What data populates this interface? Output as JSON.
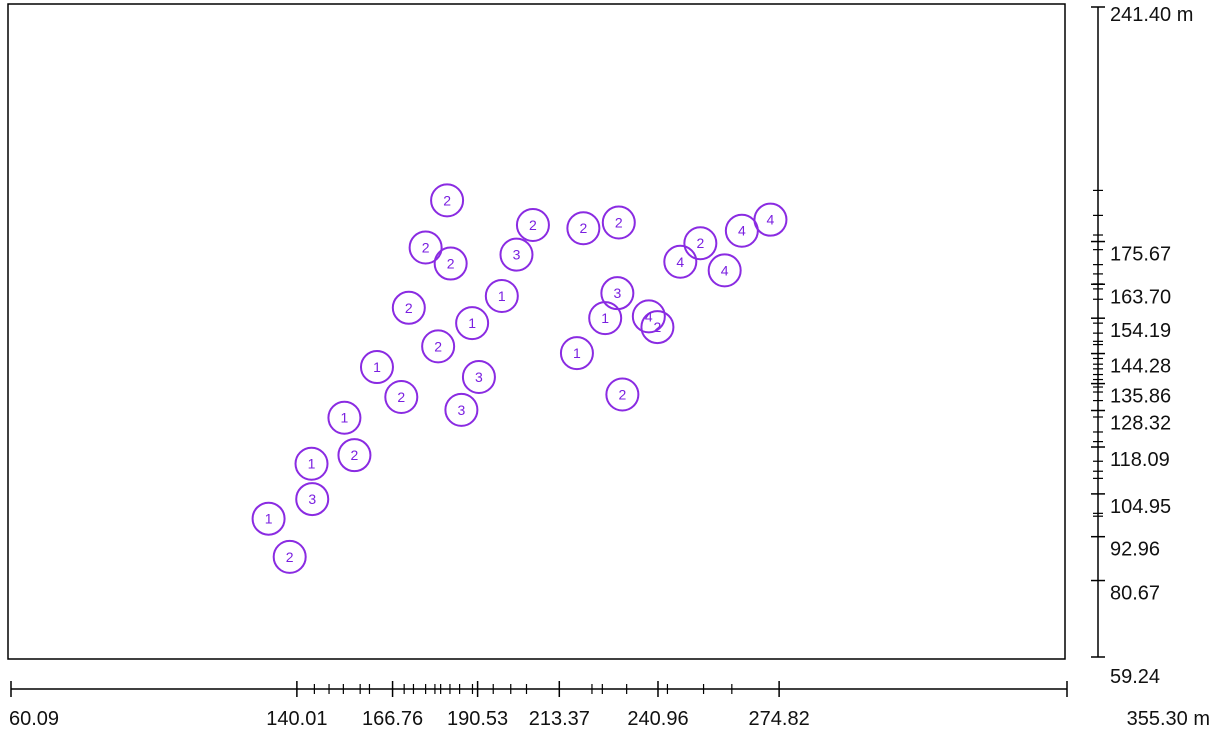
{
  "chart_data": {
    "type": "scatter",
    "title": "",
    "unit": "m",
    "x_axis": {
      "range": [
        60.09,
        355.3
      ],
      "labels": [
        {
          "value": 60.09,
          "text": "60.09"
        },
        {
          "value": 140.01,
          "text": "140.01"
        },
        {
          "value": 166.76,
          "text": "166.76"
        },
        {
          "value": 190.53,
          "text": "190.53"
        },
        {
          "value": 213.37,
          "text": "213.37"
        },
        {
          "value": 240.96,
          "text": "240.96"
        },
        {
          "value": 274.82,
          "text": "274.82"
        },
        {
          "value": 355.3,
          "text": "355.30 m"
        }
      ],
      "minor_ticks": [
        144.9,
        149.0,
        153.0,
        157.7,
        160.3,
        170.0,
        172.6,
        176.0,
        178.6,
        180.2,
        182.8,
        185.5,
        189.1,
        194.9,
        199.8,
        204.2,
        222.5,
        225.4,
        232.2,
        243.6,
        253.7,
        261.6
      ]
    },
    "y_axis": {
      "range": [
        59.24,
        241.4
      ],
      "labels": [
        {
          "value": 241.4,
          "text": "241.40 m"
        },
        {
          "value": 175.67,
          "text": "175.67"
        },
        {
          "value": 163.7,
          "text": "163.70"
        },
        {
          "value": 154.19,
          "text": "154.19"
        },
        {
          "value": 144.28,
          "text": "144.28"
        },
        {
          "value": 135.86,
          "text": "135.86"
        },
        {
          "value": 128.32,
          "text": "128.32"
        },
        {
          "value": 118.09,
          "text": "118.09"
        },
        {
          "value": 104.95,
          "text": "104.95"
        },
        {
          "value": 92.96,
          "text": "92.96"
        },
        {
          "value": 80.67,
          "text": "80.67"
        },
        {
          "value": 59.24,
          "text": "59.24"
        }
      ],
      "minor_ticks": [
        190.0,
        183.0,
        177.5,
        173.4,
        169.2,
        166.6,
        163.8,
        162.4,
        159.5,
        152.8,
        150.0,
        147.7,
        146.8,
        142.9,
        141.3,
        140.0,
        138.4,
        137.0,
        134.9,
        133.5,
        131.1,
        126.5,
        122.3,
        119.6,
        114.1,
        111.3,
        109.3,
        99.5,
        98.7
      ]
    },
    "point_color": "#8a2be2",
    "points": [
      {
        "x": 132.1,
        "y": 98.0,
        "label": "1"
      },
      {
        "x": 144.1,
        "y": 113.4,
        "label": "1"
      },
      {
        "x": 153.3,
        "y": 126.3,
        "label": "1"
      },
      {
        "x": 162.4,
        "y": 140.5,
        "label": "1"
      },
      {
        "x": 189.0,
        "y": 152.8,
        "label": "1"
      },
      {
        "x": 197.3,
        "y": 160.4,
        "label": "1"
      },
      {
        "x": 218.3,
        "y": 144.4,
        "label": "1"
      },
      {
        "x": 226.2,
        "y": 154.2,
        "label": "1"
      },
      {
        "x": 138.0,
        "y": 87.3,
        "label": "2"
      },
      {
        "x": 156.1,
        "y": 115.8,
        "label": "2"
      },
      {
        "x": 169.2,
        "y": 132.1,
        "label": "2"
      },
      {
        "x": 171.3,
        "y": 157.1,
        "label": "2"
      },
      {
        "x": 176.0,
        "y": 174.0,
        "label": "2"
      },
      {
        "x": 179.5,
        "y": 146.3,
        "label": "2"
      },
      {
        "x": 182.0,
        "y": 187.2,
        "label": "2"
      },
      {
        "x": 183.0,
        "y": 169.5,
        "label": "2"
      },
      {
        "x": 206.0,
        "y": 180.3,
        "label": "2"
      },
      {
        "x": 220.1,
        "y": 179.4,
        "label": "2"
      },
      {
        "x": 231.0,
        "y": 132.8,
        "label": "2"
      },
      {
        "x": 230.0,
        "y": 181.0,
        "label": "2"
      },
      {
        "x": 240.8,
        "y": 151.7,
        "label": "2"
      },
      {
        "x": 252.8,
        "y": 175.2,
        "label": "2"
      },
      {
        "x": 144.3,
        "y": 103.5,
        "label": "3"
      },
      {
        "x": 186.0,
        "y": 128.5,
        "label": "3"
      },
      {
        "x": 190.9,
        "y": 137.7,
        "label": "3"
      },
      {
        "x": 201.4,
        "y": 172.0,
        "label": "3"
      },
      {
        "x": 229.6,
        "y": 161.2,
        "label": "3"
      },
      {
        "x": 238.4,
        "y": 154.7,
        "label": "4"
      },
      {
        "x": 259.6,
        "y": 167.6,
        "label": "4"
      },
      {
        "x": 247.2,
        "y": 170.0,
        "label": "4"
      },
      {
        "x": 264.4,
        "y": 178.7,
        "label": "4"
      },
      {
        "x": 272.4,
        "y": 181.8,
        "label": "4"
      }
    ]
  }
}
